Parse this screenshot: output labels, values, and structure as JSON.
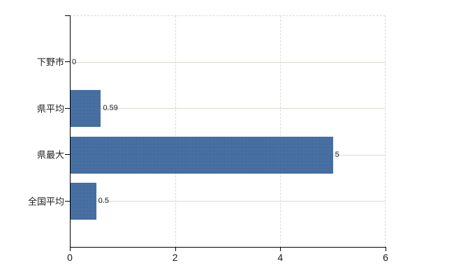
{
  "chart_data": {
    "type": "bar",
    "orientation": "horizontal",
    "title": "",
    "xlabel": "",
    "ylabel": "",
    "categories": [
      "下野市",
      "県平均",
      "県最大",
      "全国平均"
    ],
    "values": [
      0,
      0.59,
      5,
      0.5
    ],
    "data_labels": [
      "0",
      "0.59",
      "5",
      "0.5"
    ],
    "xlim": [
      0,
      6
    ],
    "x_ticks": [
      0,
      2,
      4,
      6
    ],
    "x_tick_labels": [
      "0",
      "2",
      "4",
      "6"
    ],
    "grid": "horizontal solid lines at category centers; vertical dashed lines at 2 and 4; dashed top and right plot border",
    "legend": "none",
    "colors": {
      "bar": "#3e6ba4",
      "axis": "#000000",
      "gridline": "#d6dcd2",
      "dashed_border": "#d8d8d5",
      "label_text": "#1a1a1a"
    }
  }
}
